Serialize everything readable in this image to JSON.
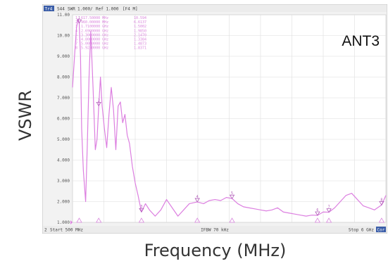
{
  "chart_data": {
    "type": "line",
    "title": "ANT3",
    "xlabel": "Frequency (MHz)",
    "ylabel": "VSWR",
    "header": {
      "trace": "Tr4",
      "param": "S44",
      "format": "SWR",
      "scale": "1.000/",
      "ref": "Ref 1.000",
      "channel": "[F4 M]"
    },
    "footer": {
      "channel": "2",
      "start": "Start 500 MHz",
      "ifbw": "IFBW 70 kHz",
      "stop": "Stop 6 GHz",
      "cor": "Cor"
    },
    "x_range_mhz": [
      500,
      6000
    ],
    "ylim": [
      1.0,
      11.0
    ],
    "y_ticks": [
      "11.00",
      "10.00",
      "9.000",
      "8.000",
      "7.000",
      "6.000",
      "5.000",
      "4.000",
      "3.000",
      "2.000",
      "1.000"
    ],
    "markers": [
      {
        "id": "1",
        "freq": "617.50000 MHz",
        "value": "10.594",
        "x": 617.5,
        "y": 10.594
      },
      {
        "id": "2",
        "freq": "960.00000 MHz",
        "value": "6.6137",
        "x": 960,
        "y": 6.6137
      },
      {
        "id": "3",
        "freq": "1.7100000 GHz",
        "value": "1.5002",
        "x": 1710,
        "y": 1.5002
      },
      {
        "id": "4",
        "freq": "2.6900000 GHz",
        "value": "1.9850",
        "x": 2690,
        "y": 1.985
      },
      {
        "id": "5",
        "freq": "3.3000000 GHz",
        "value": "2.1470",
        "x": 3300,
        "y": 2.147
      },
      {
        "id": "6",
        "freq": "4.8000000 GHz",
        "value": "1.3384",
        "x": 4800,
        "y": 1.3384
      },
      {
        "id": "7",
        "freq": "5.0000000 GHz",
        "value": "1.4873",
        "x": 5000,
        "y": 1.4873
      },
      {
        "id": "8",
        "freq": "5.9250000 GHz",
        "value": "1.8371",
        "x": 5925,
        "y": 1.8371
      }
    ],
    "series": [
      {
        "values_x": [
          500,
          540,
          570,
          600,
          617,
          640,
          660,
          690,
          730,
          760,
          790,
          820,
          860,
          900,
          930,
          960,
          990,
          1020,
          1060,
          1100,
          1140,
          1180,
          1220,
          1260,
          1300,
          1340,
          1380,
          1420,
          1460,
          1500,
          1550,
          1600,
          1650,
          1710,
          1780,
          1850,
          1950,
          2050,
          2150,
          2250,
          2350,
          2450,
          2550,
          2690,
          2800,
          2900,
          3000,
          3100,
          3200,
          3300,
          3400,
          3500,
          3600,
          3700,
          3800,
          3900,
          4000,
          4100,
          4200,
          4300,
          4400,
          4500,
          4600,
          4700,
          4800,
          4900,
          5000,
          5100,
          5200,
          5300,
          5400,
          5500,
          5600,
          5700,
          5800,
          5925,
          6000
        ],
        "values_y": [
          7.5,
          9.2,
          10.4,
          10.8,
          10.594,
          9.0,
          5.5,
          3.5,
          2.0,
          4.8,
          8.0,
          10.2,
          7.5,
          4.5,
          5.0,
          6.61,
          8.0,
          6.6,
          5.5,
          4.6,
          6.2,
          7.5,
          6.4,
          4.5,
          6.6,
          6.8,
          5.8,
          6.2,
          5.2,
          4.8,
          3.7,
          2.9,
          2.3,
          1.5,
          1.9,
          1.6,
          1.3,
          1.6,
          2.1,
          1.7,
          1.3,
          1.6,
          1.9,
          1.985,
          1.9,
          2.05,
          2.1,
          2.05,
          2.2,
          2.15,
          1.9,
          1.75,
          1.7,
          1.65,
          1.6,
          1.55,
          1.6,
          1.7,
          1.5,
          1.45,
          1.4,
          1.35,
          1.3,
          1.35,
          1.34,
          1.5,
          1.49,
          1.7,
          2.0,
          2.3,
          2.4,
          2.1,
          1.8,
          1.7,
          1.6,
          1.84,
          2.3
        ]
      }
    ]
  }
}
